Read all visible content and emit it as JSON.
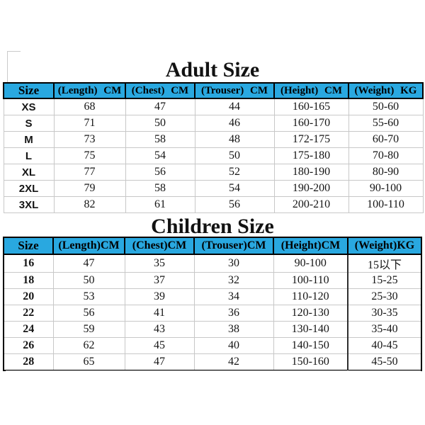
{
  "colors": {
    "header_bg": "#29a8e0",
    "header_border": "#000000",
    "grid_line": "#c8c8c8",
    "children_outer_border": "#000000",
    "text": "#151515",
    "background": "#ffffff"
  },
  "chart_data": [
    {
      "type": "table",
      "title": "Adult Size",
      "columns": [
        "Size",
        "(Length) CM",
        "(Chest) CM",
        "(Trouser) CM",
        "(Height) CM",
        "(Weight) KG"
      ],
      "rows": [
        [
          "XS",
          "68",
          "47",
          "44",
          "160-165",
          "50-60"
        ],
        [
          "S",
          "71",
          "50",
          "46",
          "160-170",
          "55-60"
        ],
        [
          "M",
          "73",
          "58",
          "48",
          "172-175",
          "60-70"
        ],
        [
          "L",
          "75",
          "54",
          "50",
          "175-180",
          "70-80"
        ],
        [
          "XL",
          "77",
          "56",
          "52",
          "180-190",
          "80-90"
        ],
        [
          "2XL",
          "79",
          "58",
          "54",
          "190-200",
          "90-100"
        ],
        [
          "3XL",
          "82",
          "61",
          "56",
          "200-210",
          "100-110"
        ]
      ]
    },
    {
      "type": "table",
      "title": "Children Size",
      "columns": [
        "Size",
        "(Length)CM",
        "(Chest)CM",
        "(Trouser)CM",
        "(Height)CM",
        "(Weight)KG"
      ],
      "rows": [
        [
          "16",
          "47",
          "35",
          "30",
          "90-100",
          "15以下"
        ],
        [
          "18",
          "50",
          "37",
          "32",
          "100-110",
          "15-25"
        ],
        [
          "20",
          "53",
          "39",
          "34",
          "110-120",
          "25-30"
        ],
        [
          "22",
          "56",
          "41",
          "36",
          "120-130",
          "30-35"
        ],
        [
          "24",
          "59",
          "43",
          "38",
          "130-140",
          "35-40"
        ],
        [
          "26",
          "62",
          "45",
          "40",
          "140-150",
          "40-45"
        ],
        [
          "28",
          "65",
          "47",
          "42",
          "150-160",
          "45-50"
        ]
      ]
    }
  ]
}
